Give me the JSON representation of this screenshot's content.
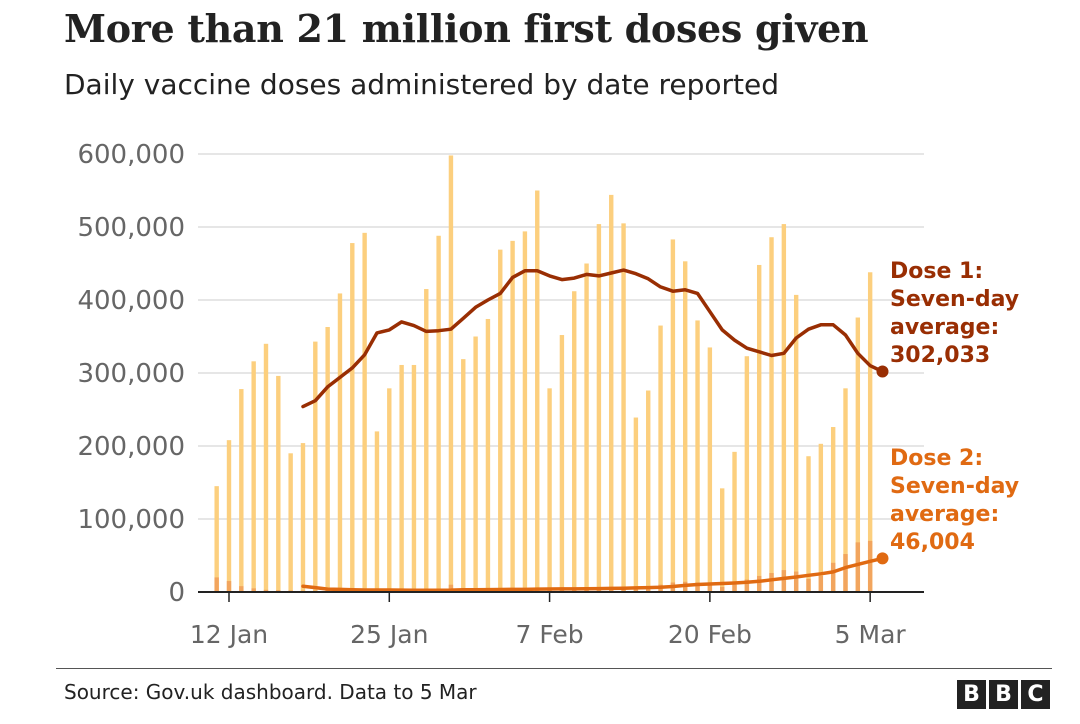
{
  "header": {
    "title": "More than 21 million first doses given",
    "subtitle": "Daily vaccine doses administered by date reported"
  },
  "footer": {
    "source": "Source: Gov.uk dashboard. Data to 5 Mar",
    "logo_letters": [
      "B",
      "B",
      "C"
    ]
  },
  "colors": {
    "dose1_bar": "#FCCF7E",
    "dose2_bar": "#F2A55E",
    "dose1_line": "#992E03",
    "dose2_line": "#E06A12",
    "grid": "#DDDDDD",
    "axis": "#222222"
  },
  "chart_data": {
    "type": "bar",
    "title": "More than 21 million first doses given",
    "subtitle": "Daily vaccine doses administered by date reported",
    "xlabel": "",
    "ylabel": "",
    "ylim": [
      0,
      600000
    ],
    "y_ticks": [
      {
        "value": 0,
        "label": "0"
      },
      {
        "value": 100000,
        "label": "100,000"
      },
      {
        "value": 200000,
        "label": "200,000"
      },
      {
        "value": 300000,
        "label": "300,000"
      },
      {
        "value": 400000,
        "label": "400,000"
      },
      {
        "value": 500000,
        "label": "500,000"
      },
      {
        "value": 600000,
        "label": "600,000"
      }
    ],
    "x_ticks": [
      {
        "day": 1,
        "label": "12 Jan"
      },
      {
        "day": 14,
        "label": "25 Jan"
      },
      {
        "day": 27,
        "label": "7 Feb"
      },
      {
        "day": 40,
        "label": "20 Feb"
      },
      {
        "day": 53,
        "label": "5 Mar"
      }
    ],
    "grid": true,
    "x_day0_date": "11 Jan",
    "series": [
      {
        "name": "Dose 1 daily",
        "kind": "bar",
        "values": [
          145000,
          208000,
          278000,
          316000,
          340000,
          296000,
          190000,
          204000,
          343000,
          363000,
          409000,
          478000,
          492000,
          220000,
          279000,
          311000,
          311000,
          415000,
          488000,
          598000,
          319000,
          350000,
          374000,
          469000,
          481000,
          494000,
          550000,
          279000,
          352000,
          412000,
          450000,
          504000,
          544000,
          505000,
          239000,
          276000,
          365000,
          483000,
          453000,
          372000,
          335000,
          142000,
          192000,
          323000,
          448000,
          486000,
          504000,
          407000,
          186000,
          203000,
          226000,
          279000,
          376000,
          438000
        ]
      },
      {
        "name": "Dose 2 daily",
        "kind": "bar",
        "values": [
          20000,
          15000,
          8000,
          5000,
          3000,
          2500,
          2000,
          1800,
          2000,
          2200,
          2500,
          2600,
          2800,
          1500,
          2000,
          2500,
          3000,
          3500,
          4000,
          10000,
          3000,
          3500,
          4000,
          4500,
          5000,
          5500,
          5500,
          3000,
          4000,
          4500,
          5500,
          6000,
          6500,
          7000,
          4500,
          7000,
          10000,
          13000,
          14000,
          13000,
          12000,
          7000,
          10000,
          17000,
          22000,
          26000,
          30000,
          28000,
          18000,
          22000,
          40000,
          52000,
          68000,
          70000
        ]
      },
      {
        "name": "Dose 1 seven-day average",
        "kind": "line",
        "start_day": 7,
        "values": [
          254000,
          262000,
          281000,
          294000,
          307000,
          325000,
          355000,
          359000,
          370000,
          365000,
          357000,
          358000,
          360000,
          375000,
          390000,
          400000,
          409000,
          431000,
          440000,
          440000,
          433000,
          428000,
          430000,
          435000,
          433000,
          437000,
          441000,
          436000,
          429000,
          418000,
          412000,
          414000,
          409000,
          384000,
          359000,
          345000,
          334000,
          329000,
          324000,
          327000,
          348000,
          360000,
          366000,
          366000,
          352000,
          327000,
          310000,
          302033
        ]
      },
      {
        "name": "Dose 2 seven-day average",
        "kind": "line",
        "start_day": 7,
        "values": [
          8000,
          6000,
          4000,
          3500,
          3000,
          2800,
          2700,
          2700,
          2600,
          2500,
          2500,
          2500,
          2600,
          3200,
          3200,
          3300,
          3400,
          3500,
          3600,
          4000,
          4100,
          4200,
          4300,
          4400,
          4600,
          5000,
          5200,
          5600,
          6000,
          6600,
          7600,
          9000,
          10300,
          11000,
          11600,
          12300,
          13300,
          14600,
          16700,
          18600,
          20600,
          22900,
          25000,
          27500,
          33400,
          37800,
          42000,
          46004
        ]
      }
    ],
    "annotations": [
      {
        "series": "Dose 1 seven-day average",
        "lines": [
          "Dose 1:",
          "Seven-day",
          "average:",
          "302,033"
        ],
        "value": 302033
      },
      {
        "series": "Dose 2 seven-day average",
        "lines": [
          "Dose 2:",
          "Seven-day",
          "average:",
          "46,004"
        ],
        "value": 46004
      }
    ]
  }
}
